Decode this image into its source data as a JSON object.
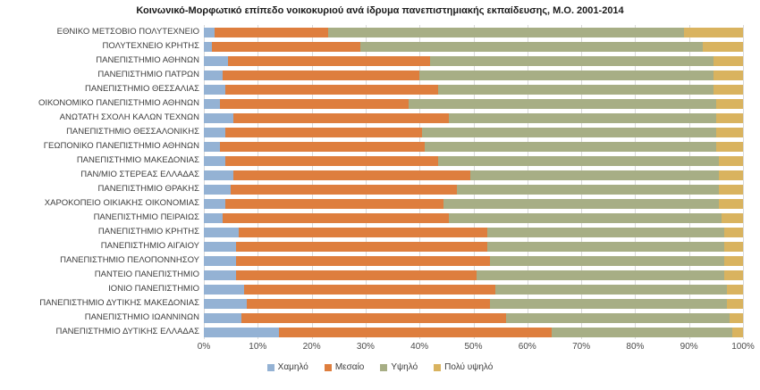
{
  "chart_data": {
    "type": "bar",
    "stacked": true,
    "orientation": "horizontal",
    "title": "Κοινωνικό-Μορφωτικό επίπεδο νοικοκυριού ανά ίδρυμα πανεπιστημιακής εκπαίδευσης, Μ.Ο. 2001-2014",
    "categories": [
      "ΕΘΝΙΚΟ ΜΕΤΣΟΒΙΟ ΠΟΛΥΤΕΧΝΕΙΟ",
      "ΠΟΛΥΤΕΧΝΕΙΟ ΚΡΗΤΗΣ",
      "ΠΑΝΕΠΙΣΤΗΜΙΟ ΑΘΗΝΩΝ",
      "ΠΑΝΕΠΙΣΤΗΜΙΟ ΠΑΤΡΩΝ",
      "ΠΑΝΕΠΙΣΤΗΜΙΟ ΘΕΣΣΑΛΙΑΣ",
      "ΟΙΚΟΝΟΜΙΚΟ ΠΑΝΕΠΙΣΤΗΜΙΟ ΑΘΗΝΩΝ",
      "ΑΝΩΤΑΤΗ ΣΧΟΛΗ ΚΑΛΩΝ ΤΕΧΝΩΝ",
      "ΠΑΝΕΠΙΣΤΗΜΙΟ ΘΕΣΣΑΛΟΝΙΚΗΣ",
      "ΓΕΩΠΟΝΙΚΟ ΠΑΝΕΠΙΣΤΗΜΙΟ ΑΘΗΝΩΝ",
      "ΠΑΝΕΠΙΣΤΗΜΙΟ ΜΑΚΕΔΟΝΙΑΣ",
      "ΠΑΝ/ΜΙΟ ΣΤΕΡΕΑΣ ΕΛΛΑΔΑΣ",
      "ΠΑΝΕΠΙΣΤΗΜΙΟ ΘΡΑΚΗΣ",
      "ΧΑΡΟΚΟΠΕΙΟ ΟΙΚΙΑΚΗΣ ΟΙΚΟΝΟΜΙΑΣ",
      "ΠΑΝΕΠΙΣΤΗΜΙΟ ΠΕΙΡΑΙΩΣ",
      "ΠΑΝΕΠΙΣΤΗΜΙΟ ΚΡΗΤΗΣ",
      "ΠΑΝΕΠΙΣΤΗΜΙΟ ΑΙΓΑΙΟΥ",
      "ΠΑΝΕΠΙΣΤΗΜΙΟ ΠΕΛΟΠΟΝΝΗΣΟΥ",
      "ΠΑΝΤΕΙΟ ΠΑΝΕΠΙΣΤΗΜΙΟ",
      "ΙΟΝΙΟ ΠΑΝΕΠΙΣΤΗΜΙΟ",
      "ΠΑΝΕΠΙΣΤΗΜΙΟ ΔΥΤΙΚΗΣ ΜΑΚΕΔΟΝΙΑΣ",
      "ΠΑΝΕΠΙΣΤΗΜΙΟ ΙΩΑΝΝΙΝΩΝ",
      "ΠΑΝΕΠΙΣΤΗΜΙΟ ΔΥΤΙΚΗΣ ΕΛΛΑΔΑΣ"
    ],
    "series": [
      {
        "name": "Χαμηλό",
        "color": "#94B2D4",
        "values": [
          2,
          1.5,
          4.5,
          3.5,
          4,
          3,
          5.5,
          4,
          3,
          4,
          5.5,
          5,
          4,
          3.5,
          6.5,
          6,
          6,
          6,
          7.5,
          8,
          7,
          14
        ]
      },
      {
        "name": "Μεσαίο",
        "color": "#DE7E3E",
        "values": [
          21,
          27.5,
          37.5,
          36.5,
          39.5,
          35,
          40,
          36.5,
          38,
          39.5,
          44,
          42,
          40.5,
          42,
          46,
          46.5,
          47,
          44.5,
          46.5,
          45,
          49,
          50.5
        ]
      },
      {
        "name": "Υψηλό",
        "color": "#A7AE85",
        "values": [
          66,
          63.5,
          52.5,
          54.5,
          51,
          57,
          49.5,
          54.5,
          54,
          52,
          46,
          48.5,
          51,
          50.5,
          44,
          44,
          43.5,
          46,
          43,
          44,
          41.5,
          33.5
        ]
      },
      {
        "name": "Πολύ υψηλό",
        "color": "#D9B35F",
        "values": [
          11,
          7.5,
          5.5,
          5.5,
          5.5,
          5,
          5,
          5,
          5,
          4.5,
          4.5,
          4.5,
          4.5,
          4,
          3.5,
          3.5,
          3.5,
          3.5,
          3,
          3,
          2.5,
          2
        ]
      }
    ],
    "xlim": [
      0,
      100
    ],
    "x_ticks": [
      "0%",
      "10%",
      "20%",
      "30%",
      "40%",
      "50%",
      "60%",
      "70%",
      "80%",
      "90%",
      "100%"
    ],
    "grid": "vertical",
    "grid_color": "#D9D9D9",
    "legend_position": "bottom",
    "background": "#FFFFFF"
  }
}
